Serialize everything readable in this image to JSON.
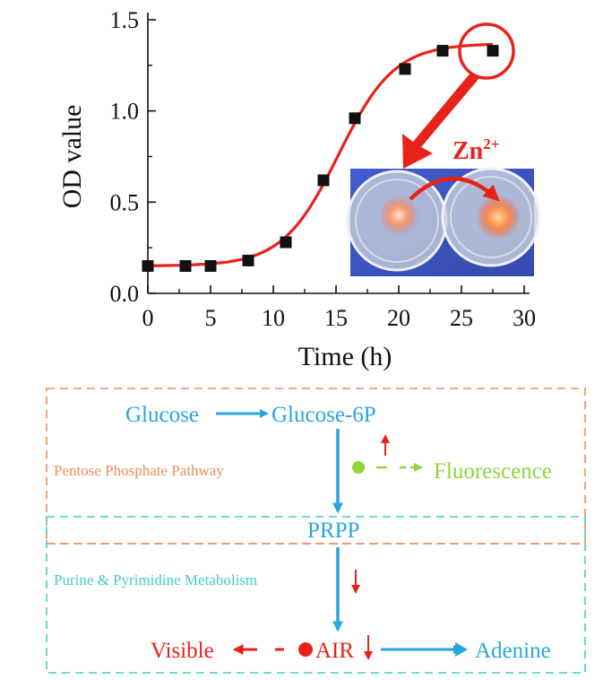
{
  "chart_data": {
    "type": "scatter",
    "title": "",
    "xlabel": "Time (h)",
    "ylabel": "OD value",
    "xlim": [
      0,
      30
    ],
    "ylim": [
      0,
      1.5
    ],
    "x_ticks": [
      "0",
      "5",
      "10",
      "15",
      "20",
      "25",
      "30"
    ],
    "y_ticks": [
      "0.0",
      "0.5",
      "1.0",
      "1.5"
    ],
    "series": [
      {
        "name": "OD",
        "x": [
          0,
          3,
          5,
          8,
          11,
          14,
          16.5,
          20.5,
          23.5,
          27.5
        ],
        "y": [
          0.15,
          0.15,
          0.15,
          0.18,
          0.28,
          0.62,
          0.96,
          1.23,
          1.33,
          1.33
        ]
      }
    ],
    "fit_curve": {
      "color": "#e8221b",
      "lower": 0.15,
      "upper": 1.37,
      "midpoint": 15.2,
      "steepness": 0.45
    },
    "inset_label": "Zn2+"
  },
  "pathway": {
    "glucose": "Glucose",
    "glucose6p": "Glucose-6P",
    "ppp": "Pentose Phosphate Pathway",
    "fluorescence": "Fluorescence",
    "prpp": "PRPP",
    "purine": "Purine & Pyrimidine Metabolism",
    "visible": "Visible",
    "air": "AIR",
    "adenine": "Adenine"
  },
  "colors": {
    "blue": "#29a6dc",
    "orange": "#ef8a5a",
    "teal": "#3fd0c0",
    "green": "#8fd43f",
    "red": "#e8221b"
  }
}
